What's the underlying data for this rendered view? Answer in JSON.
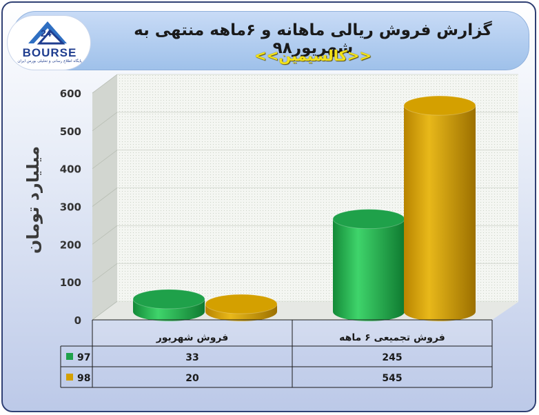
{
  "header": {
    "title": "گزارش فروش ریالی ماهانه و ۶ماهه منتهی به شهریور۹۸",
    "subtitle": "<<کالسیمین>>"
  },
  "logo": {
    "word": "BOURSE",
    "tagline": "پایگاه اطلاع رسانی و تحلیلی بورس ایران"
  },
  "colors": {
    "series_97": "#1fa14a",
    "series_98": "#d4a000"
  },
  "chart_data": {
    "type": "bar",
    "title": "گزارش فروش ریالی ماهانه و ۶ماهه منتهی به شهریور۹۸",
    "subtitle": "<<کالسیمین>>",
    "ylabel": "میلیارد تومان",
    "xlabel": "",
    "ylim": [
      0,
      600
    ],
    "yticks": [
      0,
      100,
      200,
      300,
      400,
      500,
      600
    ],
    "categories": [
      "فروش شهریور",
      "فروش تجمیعی ۶ ماهه"
    ],
    "series": [
      {
        "name": "97",
        "values": [
          33,
          245
        ]
      },
      {
        "name": "98",
        "values": [
          20,
          545
        ]
      }
    ],
    "table": {
      "rows": [
        {
          "label": "97",
          "values": [
            "33",
            "245"
          ]
        },
        {
          "label": "98",
          "values": [
            "20",
            "545"
          ]
        }
      ]
    },
    "grid": true,
    "legend": "table-bottom"
  }
}
